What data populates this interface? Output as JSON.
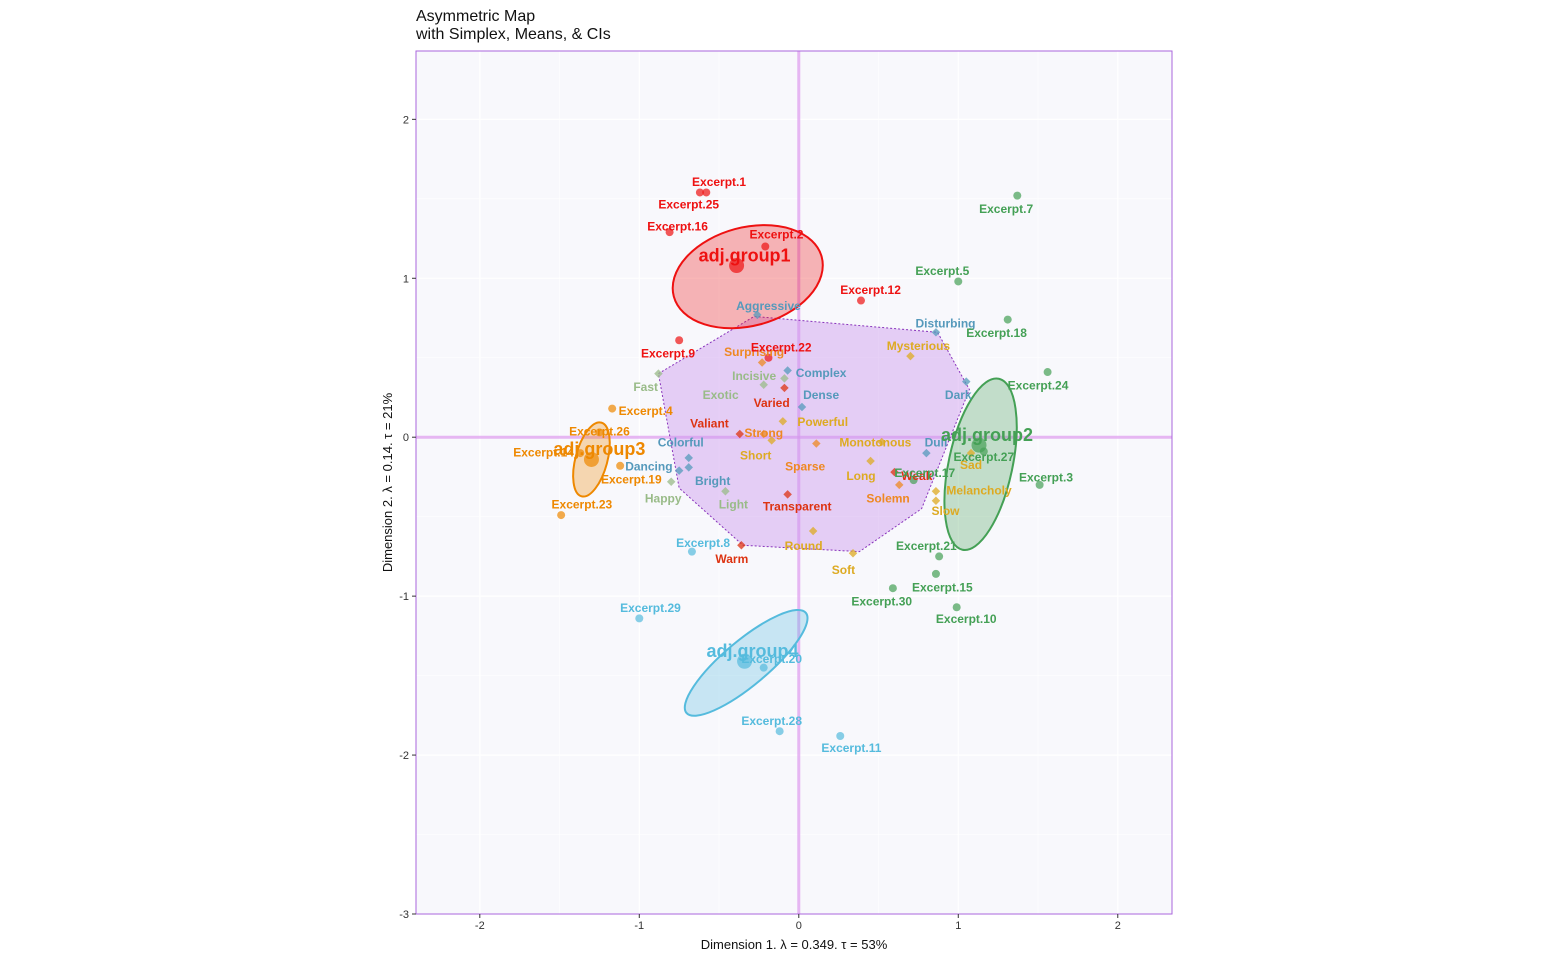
{
  "title": {
    "line1": "Asymmetric Map",
    "line2": "with Simplex, Means, & CIs"
  },
  "chart_data": {
    "type": "scatter",
    "xlabel": "Dimension 1.   λ = 0.349.  τ = 53%",
    "ylabel": "Dimension 2.   λ = 0.14.  τ = 21%",
    "xlim": [
      -2.4,
      2.34
    ],
    "ylim": [
      -3.0,
      2.43
    ],
    "xticks": [
      -2,
      -1,
      0,
      1,
      2
    ],
    "yticks": [
      -3,
      -2,
      -1,
      0,
      1,
      2
    ],
    "grid": true,
    "colors": {
      "group1": "#ee1111",
      "group2": "#44a055",
      "group3": "#ee8800",
      "group4": "#55bbdd",
      "red_adj": "#dd3311",
      "orange_adj": "#ee8822",
      "yellow_adj": "#ddaa22",
      "blue_adj": "#5599bb",
      "sage_adj": "#99bb88",
      "hull": "#cc99ee",
      "origin": "#dd99ee",
      "panel": "#f8f8fc",
      "border": "#aa66dd"
    },
    "adjective_hull": [
      [
        -0.88,
        0.4
      ],
      [
        -0.28,
        0.76
      ],
      [
        0.87,
        0.66
      ],
      [
        1.07,
        0.3
      ],
      [
        0.77,
        -0.45
      ],
      [
        0.38,
        -0.72
      ],
      [
        -0.35,
        -0.68
      ],
      [
        -0.75,
        -0.32
      ]
    ],
    "groups": [
      {
        "name": "adj.group1",
        "color_key": "group1",
        "mean": [
          -0.39,
          1.08
        ],
        "ellipse": {
          "cx": -0.32,
          "cy": 1.01,
          "rx": 0.48,
          "ry": 0.31,
          "angle": -15
        }
      },
      {
        "name": "adj.group2",
        "color_key": "group2",
        "mean": [
          1.13,
          -0.05
        ],
        "ellipse": {
          "cx": 1.14,
          "cy": -0.17,
          "rx": 0.2,
          "ry": 0.55,
          "angle": 12
        }
      },
      {
        "name": "adj.group3",
        "color_key": "group3",
        "mean": [
          -1.3,
          -0.14
        ],
        "ellipse": {
          "cx": -1.3,
          "cy": -0.14,
          "rx": 0.1,
          "ry": 0.24,
          "angle": 15
        }
      },
      {
        "name": "adj.group4",
        "color_key": "group4",
        "mean": [
          -0.34,
          -1.41
        ],
        "ellipse": {
          "cx": -0.33,
          "cy": -1.42,
          "rx": 0.14,
          "ry": 0.49,
          "angle": 50
        }
      }
    ],
    "excerpts": [
      {
        "label": "Excerpt.1",
        "color_key": "group1",
        "x": -0.62,
        "y": 1.54,
        "lx": -0.5,
        "ly": 1.6
      },
      {
        "label": "Excerpt.25",
        "color_key": "group1",
        "x": -0.58,
        "y": 1.54,
        "lx": -0.69,
        "ly": 1.46
      },
      {
        "label": "Excerpt.16",
        "color_key": "group1",
        "x": -0.81,
        "y": 1.29,
        "lx": -0.76,
        "ly": 1.32
      },
      {
        "label": "Excerpt.2",
        "color_key": "group1",
        "x": -0.21,
        "y": 1.2,
        "lx": -0.14,
        "ly": 1.27
      },
      {
        "label": "Excerpt.12",
        "color_key": "group1",
        "x": 0.39,
        "y": 0.86,
        "lx": 0.45,
        "ly": 0.92
      },
      {
        "label": "Excerpt.22",
        "color_key": "group1",
        "x": -0.19,
        "y": 0.5,
        "lx": -0.11,
        "ly": 0.56
      },
      {
        "label": "Excerpt.9",
        "color_key": "group1",
        "x": -0.75,
        "y": 0.61,
        "lx": -0.82,
        "ly": 0.52
      },
      {
        "label": "Excerpt.7",
        "color_key": "group2",
        "x": 1.37,
        "y": 1.52,
        "lx": 1.3,
        "ly": 1.43
      },
      {
        "label": "Excerpt.5",
        "color_key": "group2",
        "x": 1.0,
        "y": 0.98,
        "lx": 0.9,
        "ly": 1.04
      },
      {
        "label": "Excerpt.18",
        "color_key": "group2",
        "x": 1.31,
        "y": 0.74,
        "lx": 1.24,
        "ly": 0.65
      },
      {
        "label": "Excerpt.24",
        "color_key": "group2",
        "x": 1.56,
        "y": 0.41,
        "lx": 1.5,
        "ly": 0.32
      },
      {
        "label": "Excerpt.27",
        "color_key": "group2",
        "x": 1.16,
        "y": -0.09,
        "lx": 1.16,
        "ly": -0.13
      },
      {
        "label": "Excerpt.3",
        "color_key": "group2",
        "x": 1.51,
        "y": -0.3,
        "lx": 1.55,
        "ly": -0.26
      },
      {
        "label": "Excerpt.17",
        "color_key": "group2",
        "x": 0.72,
        "y": -0.27,
        "lx": 0.79,
        "ly": -0.23
      },
      {
        "label": "Excerpt.21",
        "color_key": "group2",
        "x": 0.88,
        "y": -0.75,
        "lx": 0.8,
        "ly": -0.69
      },
      {
        "label": "Excerpt.15",
        "color_key": "group2",
        "x": 0.86,
        "y": -0.86,
        "lx": 0.9,
        "ly": -0.95
      },
      {
        "label": "Excerpt.30",
        "color_key": "group2",
        "x": 0.59,
        "y": -0.95,
        "lx": 0.52,
        "ly": -1.04
      },
      {
        "label": "Excerpt.10",
        "color_key": "group2",
        "x": 0.99,
        "y": -1.07,
        "lx": 1.05,
        "ly": -1.15
      },
      {
        "label": "Excerpt.4",
        "color_key": "group3",
        "x": -1.17,
        "y": 0.18,
        "lx": -0.96,
        "ly": 0.16
      },
      {
        "label": "Excerpt.26",
        "color_key": "group3",
        "x": -1.25,
        "y": 0.03,
        "lx": -1.25,
        "ly": 0.03
      },
      {
        "label": "Excerpt.14",
        "color_key": "group3",
        "x": -1.37,
        "y": -0.1,
        "lx": -1.6,
        "ly": -0.1
      },
      {
        "label": "Excerpt.19",
        "color_key": "group3",
        "x": -1.12,
        "y": -0.18,
        "lx": -1.05,
        "ly": -0.27
      },
      {
        "label": "Excerpt.23",
        "color_key": "group3",
        "x": -1.49,
        "y": -0.49,
        "lx": -1.36,
        "ly": -0.43
      },
      {
        "label": "Excerpt.8",
        "color_key": "group4",
        "x": -0.67,
        "y": -0.72,
        "lx": -0.6,
        "ly": -0.67
      },
      {
        "label": "Excerpt.29",
        "color_key": "group4",
        "x": -1.0,
        "y": -1.14,
        "lx": -0.93,
        "ly": -1.08
      },
      {
        "label": "Excerpt.20",
        "color_key": "group4",
        "x": -0.22,
        "y": -1.45,
        "lx": -0.17,
        "ly": -1.4
      },
      {
        "label": "Excerpt.28",
        "color_key": "group4",
        "x": -0.12,
        "y": -1.85,
        "lx": -0.17,
        "ly": -1.79
      },
      {
        "label": "Excerpt.11",
        "color_key": "group4",
        "x": 0.26,
        "y": -1.88,
        "lx": 0.33,
        "ly": -1.96
      }
    ],
    "adjectives": [
      {
        "label": "Aggressive",
        "color_key": "blue_adj",
        "x": -0.26,
        "y": 0.77,
        "lx": -0.19,
        "ly": 0.82
      },
      {
        "label": "Disturbing",
        "color_key": "blue_adj",
        "x": 0.86,
        "y": 0.66,
        "lx": 0.92,
        "ly": 0.71
      },
      {
        "label": "Mysterious",
        "color_key": "yellow_adj",
        "x": 0.7,
        "y": 0.51,
        "lx": 0.75,
        "ly": 0.57
      },
      {
        "label": "Surprising",
        "color_key": "orange_adj",
        "x": -0.23,
        "y": 0.47,
        "lx": -0.28,
        "ly": 0.53
      },
      {
        "label": "Incisive",
        "color_key": "sage_adj",
        "x": -0.09,
        "y": 0.37,
        "lx": -0.28,
        "ly": 0.38
      },
      {
        "label": "Complex",
        "color_key": "blue_adj",
        "x": -0.07,
        "y": 0.42,
        "lx": 0.14,
        "ly": 0.4
      },
      {
        "label": "Exotic",
        "color_key": "sage_adj",
        "x": -0.22,
        "y": 0.33,
        "lx": -0.49,
        "ly": 0.26
      },
      {
        "label": "Dense",
        "color_key": "blue_adj",
        "x": 0.02,
        "y": 0.19,
        "lx": 0.14,
        "ly": 0.26
      },
      {
        "label": "Varied",
        "color_key": "red_adj",
        "x": -0.09,
        "y": 0.31,
        "lx": -0.17,
        "ly": 0.21
      },
      {
        "label": "Fast",
        "color_key": "sage_adj",
        "x": -0.88,
        "y": 0.4,
        "lx": -0.96,
        "ly": 0.31
      },
      {
        "label": "Dark",
        "color_key": "blue_adj",
        "x": 1.05,
        "y": 0.35,
        "lx": 1.0,
        "ly": 0.26
      },
      {
        "label": "Powerful",
        "color_key": "yellow_adj",
        "x": -0.1,
        "y": 0.1,
        "lx": 0.15,
        "ly": 0.09
      },
      {
        "label": "Valiant",
        "color_key": "red_adj",
        "x": -0.37,
        "y": 0.02,
        "lx": -0.56,
        "ly": 0.08
      },
      {
        "label": "Strong",
        "color_key": "orange_adj",
        "x": -0.22,
        "y": 0.02,
        "lx": -0.22,
        "ly": 0.02
      },
      {
        "label": "Monotonous",
        "color_key": "yellow_adj",
        "x": 0.52,
        "y": -0.03,
        "lx": 0.48,
        "ly": -0.04
      },
      {
        "label": "Dull",
        "color_key": "blue_adj",
        "x": 0.8,
        "y": -0.1,
        "lx": 0.86,
        "ly": -0.04
      },
      {
        "label": "Colorful",
        "color_key": "blue_adj",
        "x": -0.69,
        "y": -0.13,
        "lx": -0.74,
        "ly": -0.04
      },
      {
        "label": "Short",
        "color_key": "yellow_adj",
        "x": -0.17,
        "y": -0.02,
        "lx": -0.27,
        "ly": -0.12
      },
      {
        "label": "Sad",
        "color_key": "yellow_adj",
        "x": 1.08,
        "y": -0.1,
        "lx": 1.08,
        "ly": -0.18
      },
      {
        "label": "Sparse",
        "color_key": "orange_adj",
        "x": 0.11,
        "y": -0.04,
        "lx": 0.04,
        "ly": -0.19
      },
      {
        "label": "Dancing",
        "color_key": "blue_adj",
        "x": -0.75,
        "y": -0.21,
        "lx": -0.94,
        "ly": -0.19
      },
      {
        "label": "Long",
        "color_key": "yellow_adj",
        "x": 0.45,
        "y": -0.15,
        "lx": 0.39,
        "ly": -0.25
      },
      {
        "label": "Weak",
        "color_key": "red_adj",
        "x": 0.6,
        "y": -0.22,
        "lx": 0.74,
        "ly": -0.25
      },
      {
        "label": "Bright",
        "color_key": "blue_adj",
        "x": -0.69,
        "y": -0.19,
        "lx": -0.54,
        "ly": -0.28
      },
      {
        "label": "Melancholy",
        "color_key": "yellow_adj",
        "x": 0.86,
        "y": -0.34,
        "lx": 1.13,
        "ly": -0.34
      },
      {
        "label": "Happy",
        "color_key": "sage_adj",
        "x": -0.8,
        "y": -0.28,
        "lx": -0.85,
        "ly": -0.39
      },
      {
        "label": "Solemn",
        "color_key": "orange_adj",
        "x": 0.63,
        "y": -0.3,
        "lx": 0.56,
        "ly": -0.39
      },
      {
        "label": "Light",
        "color_key": "sage_adj",
        "x": -0.46,
        "y": -0.34,
        "lx": -0.41,
        "ly": -0.43
      },
      {
        "label": "Transparent",
        "color_key": "red_adj",
        "x": -0.07,
        "y": -0.36,
        "lx": -0.01,
        "ly": -0.44
      },
      {
        "label": "Slow",
        "color_key": "yellow_adj",
        "x": 0.86,
        "y": -0.4,
        "lx": 0.92,
        "ly": -0.47
      },
      {
        "label": "Round",
        "color_key": "yellow_adj",
        "x": 0.09,
        "y": -0.59,
        "lx": 0.03,
        "ly": -0.69
      },
      {
        "label": "Warm",
        "color_key": "red_adj",
        "x": -0.36,
        "y": -0.68,
        "lx": -0.42,
        "ly": -0.77
      },
      {
        "label": "Soft",
        "color_key": "yellow_adj",
        "x": 0.34,
        "y": -0.73,
        "lx": 0.28,
        "ly": -0.84
      }
    ]
  }
}
